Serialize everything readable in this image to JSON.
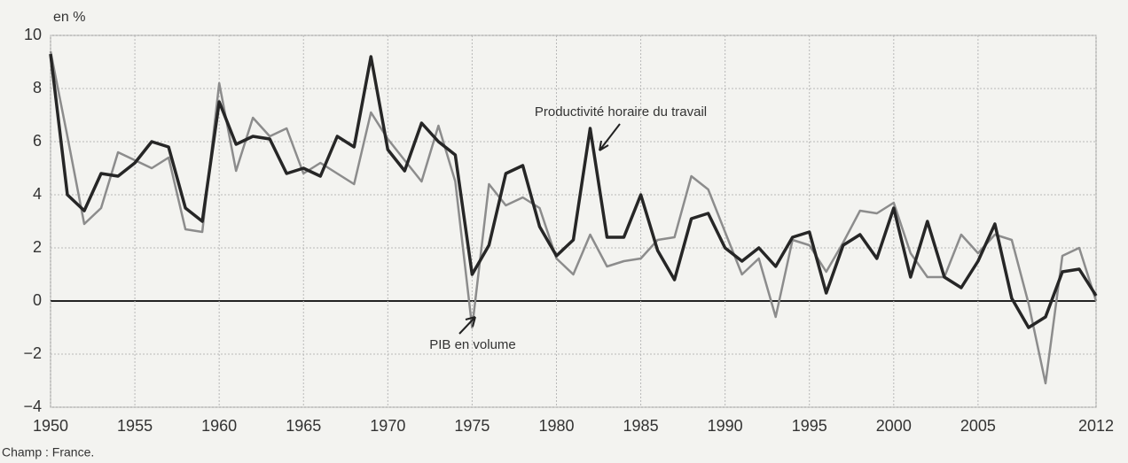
{
  "chart_data": {
    "type": "line",
    "y_unit_label": "en %",
    "source": "Champ : France.",
    "x": [
      1950,
      1951,
      1952,
      1953,
      1954,
      1955,
      1956,
      1957,
      1958,
      1959,
      1960,
      1961,
      1962,
      1963,
      1964,
      1965,
      1966,
      1967,
      1968,
      1969,
      1970,
      1971,
      1972,
      1973,
      1974,
      1975,
      1976,
      1977,
      1978,
      1979,
      1980,
      1981,
      1982,
      1983,
      1984,
      1985,
      1986,
      1987,
      1988,
      1989,
      1990,
      1991,
      1992,
      1993,
      1994,
      1995,
      1996,
      1997,
      1998,
      1999,
      2000,
      2001,
      2002,
      2003,
      2004,
      2005,
      2006,
      2007,
      2008,
      2009,
      2010,
      2011,
      2012
    ],
    "series": [
      {
        "name": "PIB en volume",
        "color": "#8c8c8c",
        "values": [
          9.4,
          6.2,
          2.9,
          3.5,
          5.6,
          5.3,
          5.0,
          5.4,
          2.7,
          2.6,
          8.2,
          4.9,
          6.9,
          6.2,
          6.5,
          4.8,
          5.2,
          4.8,
          4.4,
          7.1,
          6.1,
          5.3,
          4.5,
          6.6,
          4.5,
          -1.0,
          4.4,
          3.6,
          3.9,
          3.5,
          1.6,
          1.0,
          2.5,
          1.3,
          1.5,
          1.6,
          2.3,
          2.4,
          4.7,
          4.2,
          2.6,
          1.0,
          1.6,
          -0.6,
          2.3,
          2.1,
          1.1,
          2.2,
          3.4,
          3.3,
          3.7,
          1.8,
          0.9,
          0.9,
          2.5,
          1.8,
          2.5,
          2.3,
          -0.1,
          -3.1,
          1.7,
          2.0,
          0.0
        ]
      },
      {
        "name": "Productivité horaire du travail",
        "color": "#262626",
        "values": [
          9.3,
          4.0,
          3.4,
          4.8,
          4.7,
          5.2,
          6.0,
          5.8,
          3.5,
          3.0,
          7.5,
          5.9,
          6.2,
          6.1,
          4.8,
          5.0,
          4.7,
          6.2,
          5.8,
          9.2,
          5.7,
          4.9,
          6.7,
          6.0,
          5.5,
          1.0,
          2.1,
          4.8,
          5.1,
          2.8,
          1.7,
          2.3,
          6.5,
          2.4,
          2.4,
          4.0,
          1.9,
          0.8,
          3.1,
          3.3,
          2.0,
          1.5,
          2.0,
          1.3,
          2.4,
          2.6,
          0.3,
          2.1,
          2.5,
          1.6,
          3.5,
          0.9,
          3.0,
          0.9,
          0.5,
          1.5,
          2.9,
          0.1,
          -1.0,
          -0.6,
          1.1,
          1.2,
          0.2
        ]
      }
    ],
    "xlim": [
      1950,
      2012
    ],
    "xticks": [
      1950,
      1955,
      1960,
      1965,
      1970,
      1975,
      1980,
      1985,
      1990,
      1995,
      2000,
      2005,
      2012
    ],
    "ylim": [
      -4,
      10
    ],
    "yticks": [
      10,
      8,
      6,
      4,
      2,
      0,
      {
        "value": -2,
        "label": "−2"
      },
      {
        "value": -4,
        "label": "−4"
      }
    ],
    "grid": true
  }
}
